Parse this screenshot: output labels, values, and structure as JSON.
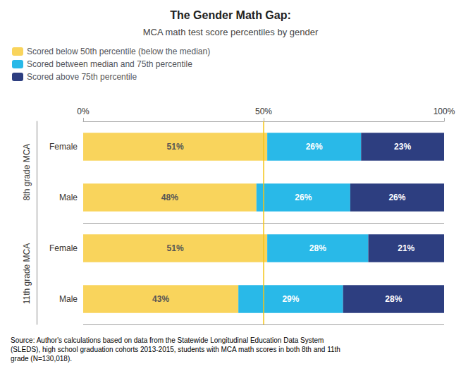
{
  "chart_data": {
    "type": "bar",
    "orientation": "horizontal",
    "stacked": true,
    "title": "The Gender Math Gap:",
    "subtitle": "MCA math test score percentiles by gender",
    "categories": [
      "Female",
      "Male",
      "Female",
      "Male"
    ],
    "annotations": [
      "8th grade MCA",
      "11th grade MCA"
    ],
    "series": [
      {
        "name": "Scored below 50th percentile (below the median)",
        "color": "#F9D45C",
        "values": [
          51,
          48,
          51,
          43
        ],
        "value_labels": [
          "51%",
          "48%",
          "51%",
          "43%"
        ]
      },
      {
        "name": "Scored between median and 75th percentile",
        "color": "#29B9E8",
        "values": [
          26,
          26,
          28,
          29
        ],
        "value_labels": [
          "26%",
          "26%",
          "28%",
          "29%"
        ]
      },
      {
        "name": "Scored above 75th percentile",
        "color": "#2D3E80",
        "values": [
          23,
          26,
          21,
          28
        ],
        "value_labels": [
          "23%",
          "26%",
          "21%",
          "28%"
        ]
      }
    ],
    "xlim": [
      0,
      100
    ],
    "xticks": [
      {
        "value": 0,
        "label": "0%"
      },
      {
        "value": 50,
        "label": "50%"
      },
      {
        "value": 100,
        "label": "100%"
      }
    ],
    "median_line": {
      "value": 50,
      "color": "#F5C518"
    },
    "legend": "upper left",
    "grid": false,
    "data_labels": true,
    "source": "Source: Author's calculations based on data from the Statewide Longitudinal Education Data System\n(SLEDS), high school graduation cohorts 2013-2015, students with MCA math scores in both 8th and 11th\ngrade (N=130,018)."
  }
}
